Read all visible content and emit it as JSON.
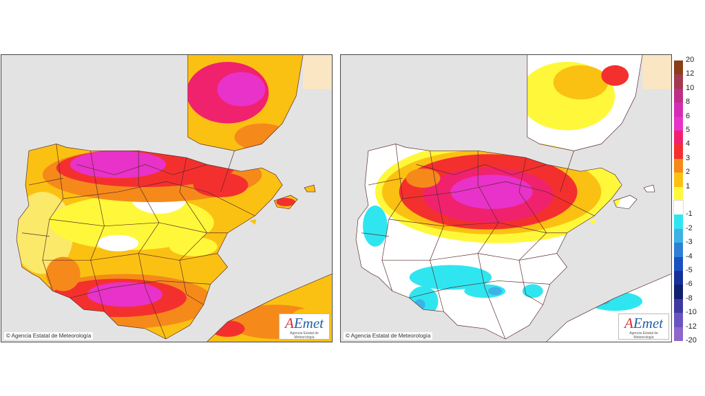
{
  "maps": [
    {
      "id": "left",
      "copyright": "© Agencia Estatal de Meteorología",
      "logo": {
        "text": "AEmet",
        "subtitle": "Agencia Estatal de Meteorología"
      }
    },
    {
      "id": "right",
      "copyright": "© Agencia Estatal de Meteorología",
      "logo": {
        "text": "AEmet",
        "subtitle": "Agencia Estatal de Meteorología"
      }
    }
  ],
  "legend": {
    "bins": [
      {
        "label": "20",
        "color": "#8a3f16"
      },
      {
        "label": "12",
        "color": "#a33a4e"
      },
      {
        "label": "10",
        "color": "#be2f86"
      },
      {
        "label": "8",
        "color": "#d52cb4"
      },
      {
        "label": "6",
        "color": "#e832c9"
      },
      {
        "label": "5",
        "color": "#f0226e"
      },
      {
        "label": "4",
        "color": "#f4302e"
      },
      {
        "label": "3",
        "color": "#f58a1a"
      },
      {
        "label": "2",
        "color": "#fbc112"
      },
      {
        "label": "1",
        "color": "#fff83a"
      },
      {
        "label": "",
        "color": "#ffffff"
      },
      {
        "label": "-1",
        "color": "#2fe6f0"
      },
      {
        "label": "-2",
        "color": "#3cb2e6"
      },
      {
        "label": "-3",
        "color": "#2d80d6"
      },
      {
        "label": "-4",
        "color": "#1a50c0"
      },
      {
        "label": "-5",
        "color": "#15309a"
      },
      {
        "label": "-6",
        "color": "#101f6e"
      },
      {
        "label": "-8",
        "color": "#3e3aa0"
      },
      {
        "label": "-10",
        "color": "#6a55c0"
      },
      {
        "label": "-12",
        "color": "#8e66cc"
      }
    ],
    "last_label": "-20"
  }
}
